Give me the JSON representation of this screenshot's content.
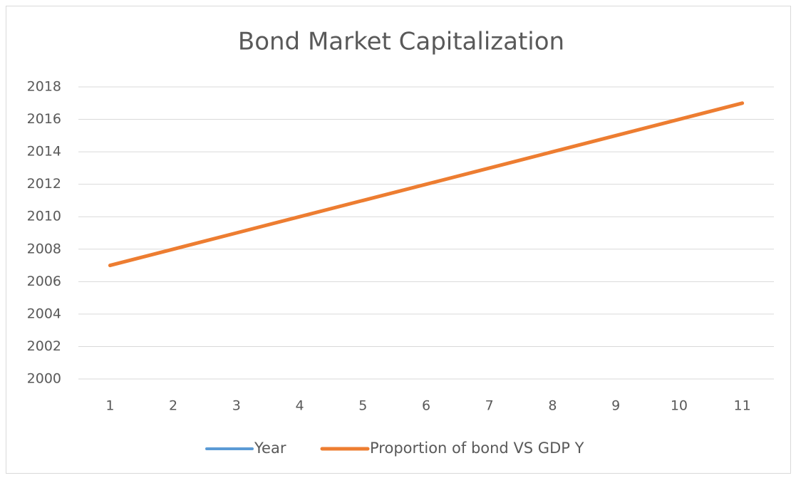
{
  "chart_data": {
    "type": "line",
    "title": "Bond Market Capitalization",
    "categories": [
      "1",
      "2",
      "3",
      "4",
      "5",
      "6",
      "7",
      "8",
      "9",
      "10",
      "11"
    ],
    "series": [
      {
        "name": "Year",
        "color": "#5b9bd5",
        "values": [
          2007,
          2008,
          2009,
          2010,
          2011,
          2012,
          2013,
          2014,
          2015,
          2016,
          2017
        ]
      },
      {
        "name": "Proportion of bond VS GDP Y",
        "color": "#ed7d31",
        "values": [
          2007,
          2008,
          2009,
          2010,
          2011,
          2012,
          2013,
          2014,
          2015,
          2016,
          2017
        ]
      }
    ],
    "ylim": [
      2000,
      2018
    ],
    "yticks": [
      2000,
      2002,
      2004,
      2006,
      2008,
      2010,
      2012,
      2014,
      2016,
      2018
    ],
    "grid": true,
    "legend": "bottom"
  }
}
